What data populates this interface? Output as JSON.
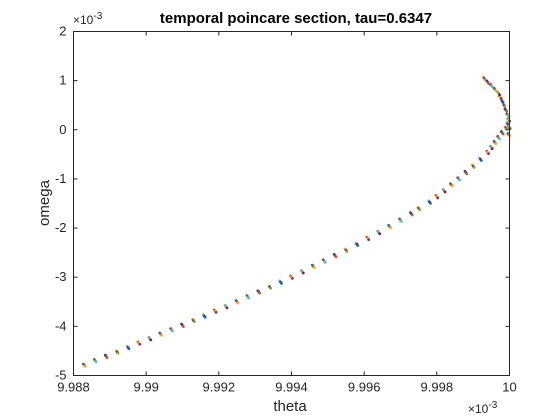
{
  "chart_data": {
    "type": "scatter",
    "title": "temporal poincare section, tau=0.6347",
    "xlabel": "theta",
    "ylabel": "omega",
    "x_exponent_label": "×10",
    "x_exponent_power": "-3",
    "y_exponent_label": "×10",
    "y_exponent_power": "-3",
    "xlim": [
      9.988,
      10.0
    ],
    "ylim": [
      -5,
      2
    ],
    "x_ticks": [
      9.988,
      9.99,
      9.992,
      9.994,
      9.996,
      9.998,
      10
    ],
    "x_tick_labels": [
      "9.988",
      "9.99",
      "9.992",
      "9.994",
      "9.996",
      "9.998",
      "10"
    ],
    "y_ticks": [
      -5,
      -4,
      -3,
      -2,
      -1,
      0,
      1,
      2
    ],
    "y_tick_labels": [
      "-5",
      "-4",
      "-3",
      "-2",
      "-1",
      "0",
      "1",
      "2"
    ],
    "grid": false,
    "marker_colors": [
      "#0072bd",
      "#d95319",
      "#edb120",
      "#7e2f8e",
      "#77ac30",
      "#4dbeee",
      "#a2142f"
    ],
    "points_note_units": "x in 1e-3, y in 1e-3",
    "series": [
      {
        "x": [
          9.9883,
          9.9886,
          9.9889,
          9.9892,
          9.9895,
          9.9898,
          9.9901,
          9.9904,
          9.9907,
          9.991,
          9.9913,
          9.9916,
          9.9919,
          9.9922,
          9.9925,
          9.9928,
          9.9931,
          9.9934,
          9.9937,
          9.994,
          9.9943,
          9.9946,
          9.9949,
          9.9952,
          9.9955,
          9.9958,
          9.9961,
          9.9964,
          9.9967,
          9.997,
          9.9973,
          9.9975,
          9.9978,
          9.998,
          9.9982,
          9.9984,
          9.9986,
          9.9988,
          9.999,
          9.9992,
          9.9994,
          9.9995,
          9.9996,
          9.9997,
          9.9998,
          9.9999,
          9.99995,
          9.99998,
          9.99999,
          9.99998,
          9.99995,
          9.9999,
          9.99985,
          9.9998,
          9.99975,
          9.9997,
          9.9996,
          9.9995,
          9.9994,
          9.9993
        ],
        "y": [
          -4.79,
          -4.7,
          -4.61,
          -4.52,
          -4.43,
          -4.34,
          -4.25,
          -4.16,
          -4.07,
          -3.98,
          -3.88,
          -3.79,
          -3.69,
          -3.6,
          -3.5,
          -3.4,
          -3.3,
          -3.2,
          -3.1,
          -3.0,
          -2.89,
          -2.78,
          -2.67,
          -2.56,
          -2.45,
          -2.33,
          -2.21,
          -2.09,
          -1.97,
          -1.84,
          -1.71,
          -1.6,
          -1.47,
          -1.36,
          -1.24,
          -1.12,
          -1.0,
          -0.87,
          -0.74,
          -0.6,
          -0.46,
          -0.36,
          -0.26,
          -0.16,
          -0.06,
          0.04,
          0.12,
          0.2,
          0.05,
          -0.1,
          0.3,
          0.4,
          0.5,
          0.58,
          0.66,
          0.74,
          0.82,
          0.9,
          0.97,
          1.05
        ]
      }
    ]
  }
}
